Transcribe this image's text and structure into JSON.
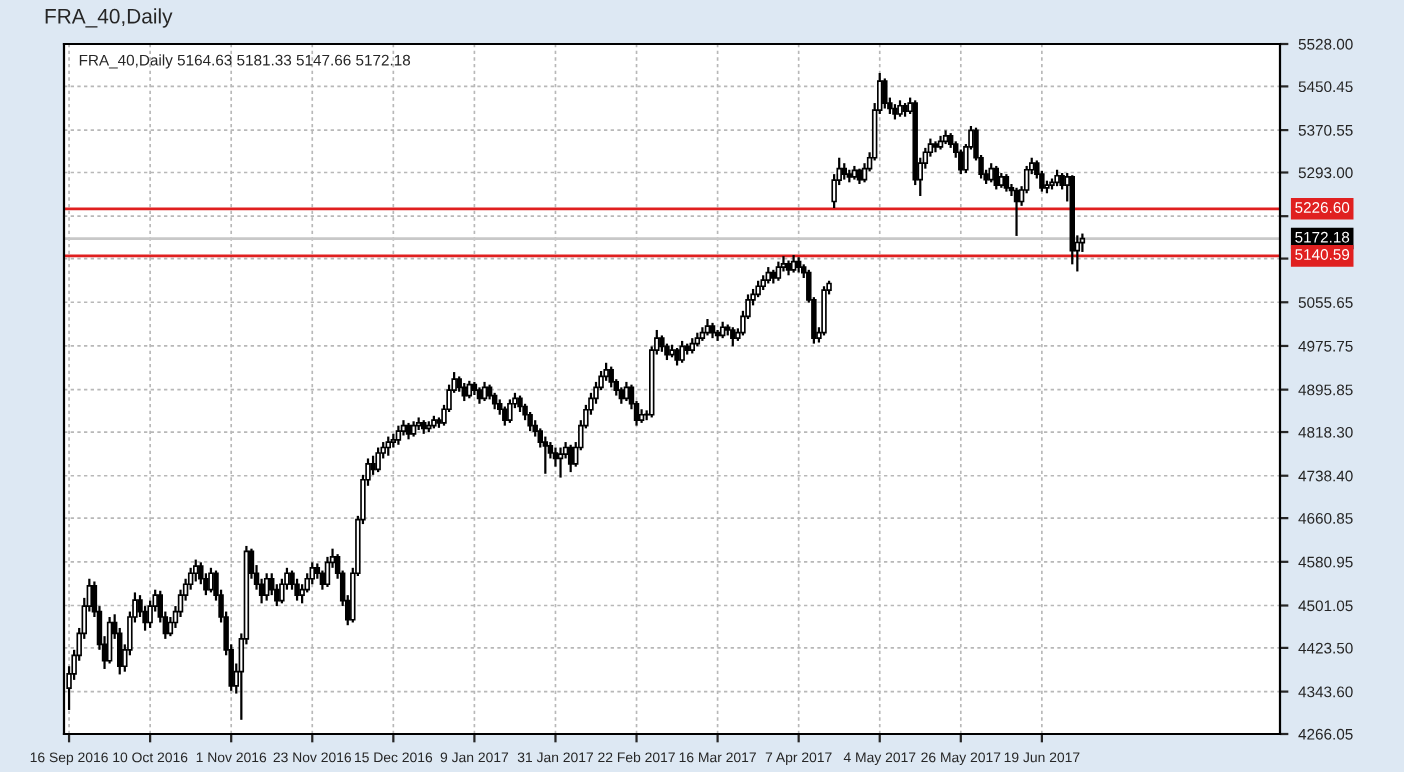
{
  "chart_data": {
    "type": "candlestick",
    "title": "FRA_40,Daily",
    "subtitle": "FRA_40,Daily 5164.63 5181.33 5147.66 5172.18",
    "categories": [
      "16 Sep 2016",
      null,
      null,
      null,
      null,
      null,
      null,
      null,
      null,
      null,
      null,
      null,
      null,
      null,
      null,
      null,
      "10 Oct 2016",
      null,
      null,
      null,
      null,
      null,
      null,
      null,
      null,
      null,
      null,
      null,
      null,
      null,
      null,
      null,
      "1 Nov 2016",
      null,
      null,
      null,
      null,
      null,
      null,
      null,
      null,
      null,
      null,
      null,
      null,
      null,
      null,
      null,
      "23 Nov 2016",
      null,
      null,
      null,
      null,
      null,
      null,
      null,
      null,
      null,
      null,
      null,
      null,
      null,
      null,
      null,
      "15 Dec 2016",
      null,
      null,
      null,
      null,
      null,
      null,
      null,
      null,
      null,
      null,
      null,
      null,
      null,
      null,
      null,
      "9 Jan 2017",
      null,
      null,
      null,
      null,
      null,
      null,
      null,
      null,
      null,
      null,
      null,
      null,
      null,
      null,
      null,
      "31 Jan 2017",
      null,
      null,
      null,
      null,
      null,
      null,
      null,
      null,
      null,
      null,
      null,
      null,
      null,
      null,
      null,
      "22 Feb 2017",
      null,
      null,
      null,
      null,
      null,
      null,
      null,
      null,
      null,
      null,
      null,
      null,
      null,
      null,
      null,
      "16 Mar 2017",
      null,
      null,
      null,
      null,
      null,
      null,
      null,
      null,
      null,
      null,
      null,
      null,
      null,
      null,
      null,
      "7 Apr 2017",
      null,
      null,
      null,
      null,
      null,
      null,
      null,
      null,
      null,
      null,
      null,
      null,
      null,
      null,
      null,
      "4 May 2017",
      null,
      null,
      null,
      null,
      null,
      null,
      null,
      null,
      null,
      null,
      null,
      null,
      null,
      null,
      null,
      "26 May 2017",
      null,
      null,
      null,
      null,
      null,
      null,
      null,
      null,
      null,
      null,
      null,
      null,
      null,
      null,
      null,
      "19 Jun 2017",
      null,
      null,
      null,
      null,
      null,
      null,
      null,
      null,
      null,
      null,
      null,
      null,
      null,
      null,
      null,
      null,
      null,
      null,
      null,
      null,
      null,
      null,
      null,
      null,
      null,
      null,
      null,
      null,
      null,
      null,
      null,
      null,
      null,
      null,
      null,
      null,
      null,
      null,
      null,
      null,
      null,
      null,
      null,
      null,
      null,
      null
    ],
    "ohlc": [
      [
        4350,
        4390,
        4310,
        4376
      ],
      [
        4376,
        4420,
        4365,
        4410
      ],
      [
        4410,
        4460,
        4400,
        4450
      ],
      [
        4450,
        4515,
        4440,
        4500
      ],
      [
        4500,
        4550,
        4490,
        4537
      ],
      [
        4537,
        4545,
        4480,
        4490
      ],
      [
        4490,
        4500,
        4420,
        4430
      ],
      [
        4430,
        4445,
        4385,
        4400
      ],
      [
        4400,
        4480,
        4395,
        4470
      ],
      [
        4470,
        4485,
        4440,
        4450
      ],
      [
        4450,
        4460,
        4375,
        4390
      ],
      [
        4390,
        4430,
        4380,
        4420
      ],
      [
        4420,
        4490,
        4410,
        4480
      ],
      [
        4480,
        4525,
        4470,
        4511
      ],
      [
        4511,
        4520,
        4480,
        4490
      ],
      [
        4490,
        4500,
        4455,
        4470
      ],
      [
        4470,
        4510,
        4460,
        4500
      ],
      [
        4500,
        4530,
        4490,
        4520
      ],
      [
        4520,
        4528,
        4470,
        4480
      ],
      [
        4480,
        4490,
        4440,
        4450
      ],
      [
        4450,
        4480,
        4445,
        4470
      ],
      [
        4470,
        4500,
        4460,
        4490
      ],
      [
        4490,
        4530,
        4480,
        4520
      ],
      [
        4520,
        4550,
        4510,
        4540
      ],
      [
        4540,
        4570,
        4530,
        4560
      ],
      [
        4560,
        4585,
        4545,
        4573
      ],
      [
        4573,
        4580,
        4540,
        4550
      ],
      [
        4550,
        4560,
        4520,
        4530
      ],
      [
        4530,
        4570,
        4525,
        4560
      ],
      [
        4560,
        4565,
        4510,
        4520
      ],
      [
        4520,
        4530,
        4470,
        4480
      ],
      [
        4480,
        4490,
        4410,
        4420
      ],
      [
        4420,
        4430,
        4345,
        4354
      ],
      [
        4354,
        4395,
        4340,
        4380
      ],
      [
        4380,
        4450,
        4292,
        4440
      ],
      [
        4440,
        4610,
        4430,
        4600
      ],
      [
        4600,
        4605,
        4550,
        4560
      ],
      [
        4560,
        4575,
        4530,
        4540
      ],
      [
        4540,
        4550,
        4505,
        4520
      ],
      [
        4520,
        4560,
        4510,
        4550
      ],
      [
        4550,
        4560,
        4520,
        4530
      ],
      [
        4530,
        4540,
        4500,
        4510
      ],
      [
        4510,
        4550,
        4505,
        4540
      ],
      [
        4540,
        4570,
        4530,
        4560
      ],
      [
        4560,
        4565,
        4530,
        4540
      ],
      [
        4540,
        4550,
        4510,
        4520
      ],
      [
        4520,
        4540,
        4505,
        4530
      ],
      [
        4530,
        4560,
        4525,
        4550
      ],
      [
        4550,
        4580,
        4540,
        4570
      ],
      [
        4570,
        4578,
        4550,
        4560
      ],
      [
        4560,
        4565,
        4530,
        4540
      ],
      [
        4540,
        4590,
        4535,
        4580
      ],
      [
        4580,
        4605,
        4570,
        4590
      ],
      [
        4590,
        4595,
        4550,
        4560
      ],
      [
        4560,
        4565,
        4500,
        4510
      ],
      [
        4510,
        4520,
        4465,
        4475
      ],
      [
        4475,
        4570,
        4470,
        4560
      ],
      [
        4560,
        4665,
        4555,
        4658
      ],
      [
        4658,
        4740,
        4650,
        4731
      ],
      [
        4731,
        4770,
        4720,
        4760
      ],
      [
        4760,
        4775,
        4740,
        4750
      ],
      [
        4750,
        4790,
        4745,
        4780
      ],
      [
        4780,
        4800,
        4770,
        4790
      ],
      [
        4790,
        4810,
        4775,
        4800
      ],
      [
        4800,
        4815,
        4790,
        4804
      ],
      [
        4804,
        4830,
        4795,
        4820
      ],
      [
        4820,
        4840,
        4812,
        4830
      ],
      [
        4830,
        4835,
        4805,
        4815
      ],
      [
        4815,
        4838,
        4810,
        4830
      ],
      [
        4830,
        4845,
        4822,
        4835
      ],
      [
        4835,
        4840,
        4815,
        4825
      ],
      [
        4825,
        4838,
        4818,
        4830
      ],
      [
        4830,
        4848,
        4825,
        4840
      ],
      [
        4840,
        4845,
        4826,
        4835
      ],
      [
        4835,
        4868,
        4830,
        4860
      ],
      [
        4860,
        4905,
        4855,
        4895
      ],
      [
        4895,
        4928,
        4890,
        4915
      ],
      [
        4915,
        4920,
        4892,
        4900
      ],
      [
        4900,
        4908,
        4875,
        4885
      ],
      [
        4885,
        4912,
        4880,
        4905
      ],
      [
        4905,
        4910,
        4886,
        4895
      ],
      [
        4895,
        4900,
        4870,
        4880
      ],
      [
        4880,
        4910,
        4875,
        4900
      ],
      [
        4900,
        4905,
        4878,
        4885
      ],
      [
        4885,
        4890,
        4860,
        4870
      ],
      [
        4870,
        4878,
        4850,
        4860
      ],
      [
        4860,
        4865,
        4830,
        4840
      ],
      [
        4840,
        4878,
        4835,
        4870
      ],
      [
        4870,
        4890,
        4862,
        4880
      ],
      [
        4880,
        4885,
        4855,
        4865
      ],
      [
        4865,
        4870,
        4840,
        4850
      ],
      [
        4850,
        4855,
        4820,
        4830
      ],
      [
        4830,
        4840,
        4810,
        4820
      ],
      [
        4820,
        4825,
        4790,
        4800
      ],
      [
        4800,
        4810,
        4742,
        4793
      ],
      [
        4793,
        4800,
        4770,
        4780
      ],
      [
        4780,
        4790,
        4755,
        4770
      ],
      [
        4770,
        4790,
        4735,
        4778
      ],
      [
        4778,
        4800,
        4770,
        4790
      ],
      [
        4790,
        4795,
        4745,
        4760
      ],
      [
        4760,
        4800,
        4755,
        4790
      ],
      [
        4790,
        4840,
        4785,
        4830
      ],
      [
        4830,
        4868,
        4825,
        4859
      ],
      [
        4859,
        4890,
        4850,
        4880
      ],
      [
        4880,
        4910,
        4870,
        4900
      ],
      [
        4900,
        4930,
        4895,
        4920
      ],
      [
        4920,
        4945,
        4912,
        4932
      ],
      [
        4932,
        4938,
        4900,
        4910
      ],
      [
        4910,
        4915,
        4885,
        4895
      ],
      [
        4895,
        4900,
        4870,
        4880
      ],
      [
        4880,
        4910,
        4875,
        4900
      ],
      [
        4900,
        4905,
        4860,
        4870
      ],
      [
        4870,
        4875,
        4830,
        4840
      ],
      [
        4840,
        4860,
        4835,
        4850
      ],
      [
        4850,
        4858,
        4840,
        4850
      ],
      [
        4850,
        4975,
        4845,
        4968
      ],
      [
        4968,
        5005,
        4960,
        4990
      ],
      [
        4990,
        4995,
        4965,
        4975
      ],
      [
        4975,
        4980,
        4950,
        4960
      ],
      [
        4960,
        4978,
        4955,
        4968
      ],
      [
        4968,
        4972,
        4940,
        4950
      ],
      [
        4950,
        4985,
        4945,
        4975
      ],
      [
        4975,
        4980,
        4960,
        4968
      ],
      [
        4968,
        4990,
        4962,
        4980
      ],
      [
        4980,
        5000,
        4975,
        4990
      ],
      [
        4990,
        5010,
        4985,
        5000
      ],
      [
        5000,
        5025,
        4995,
        5012
      ],
      [
        5012,
        5018,
        4990,
        5000
      ],
      [
        5000,
        5005,
        4985,
        4995
      ],
      [
        4995,
        5020,
        4990,
        5010
      ],
      [
        5010,
        5015,
        4995,
        5005
      ],
      [
        5005,
        5010,
        4975,
        4990
      ],
      [
        4990,
        5008,
        4985,
        5000
      ],
      [
        5000,
        5040,
        4995,
        5030
      ],
      [
        5030,
        5070,
        5025,
        5060
      ],
      [
        5060,
        5080,
        5050,
        5070
      ],
      [
        5070,
        5095,
        5065,
        5085
      ],
      [
        5085,
        5105,
        5078,
        5096
      ],
      [
        5096,
        5120,
        5090,
        5110
      ],
      [
        5110,
        5115,
        5090,
        5100
      ],
      [
        5100,
        5130,
        5095,
        5120
      ],
      [
        5120,
        5140,
        5112,
        5126
      ],
      [
        5126,
        5132,
        5105,
        5115
      ],
      [
        5115,
        5142,
        5110,
        5130
      ],
      [
        5130,
        5138,
        5110,
        5120
      ],
      [
        5120,
        5125,
        5100,
        5110
      ],
      [
        5110,
        5115,
        5055,
        5060
      ],
      [
        5060,
        5065,
        4980,
        4990
      ],
      [
        4990,
        5010,
        4982,
        5000
      ],
      [
        5000,
        5085,
        4995,
        5078
      ],
      [
        5078,
        5095,
        5070,
        5090
      ],
      [
        5240,
        5290,
        5228,
        5279
      ],
      [
        5279,
        5320,
        5270,
        5300
      ],
      [
        5300,
        5310,
        5280,
        5290
      ],
      [
        5290,
        5298,
        5275,
        5285
      ],
      [
        5285,
        5305,
        5280,
        5297
      ],
      [
        5297,
        5300,
        5272,
        5280
      ],
      [
        5280,
        5310,
        5275,
        5300
      ],
      [
        5300,
        5330,
        5295,
        5320
      ],
      [
        5320,
        5420,
        5315,
        5407
      ],
      [
        5407,
        5475,
        5400,
        5460
      ],
      [
        5460,
        5465,
        5410,
        5420
      ],
      [
        5420,
        5430,
        5400,
        5410
      ],
      [
        5410,
        5418,
        5390,
        5400
      ],
      [
        5400,
        5425,
        5395,
        5415
      ],
      [
        5415,
        5420,
        5395,
        5405
      ],
      [
        5405,
        5430,
        5400,
        5420
      ],
      [
        5420,
        5425,
        5270,
        5280
      ],
      [
        5280,
        5320,
        5250,
        5310
      ],
      [
        5310,
        5338,
        5300,
        5330
      ],
      [
        5330,
        5355,
        5322,
        5345
      ],
      [
        5345,
        5350,
        5330,
        5340
      ],
      [
        5340,
        5360,
        5335,
        5350
      ],
      [
        5350,
        5370,
        5345,
        5360
      ],
      [
        5360,
        5365,
        5338,
        5345
      ],
      [
        5345,
        5350,
        5320,
        5330
      ],
      [
        5330,
        5335,
        5290,
        5298
      ],
      [
        5298,
        5345,
        5292,
        5340
      ],
      [
        5340,
        5378,
        5335,
        5370
      ],
      [
        5370,
        5375,
        5315,
        5320
      ],
      [
        5320,
        5325,
        5282,
        5290
      ],
      [
        5290,
        5298,
        5272,
        5280
      ],
      [
        5280,
        5310,
        5275,
        5300
      ],
      [
        5300,
        5305,
        5262,
        5270
      ],
      [
        5270,
        5292,
        5265,
        5285
      ],
      [
        5285,
        5290,
        5258,
        5265
      ],
      [
        5265,
        5272,
        5250,
        5260
      ],
      [
        5260,
        5265,
        5177,
        5240
      ],
      [
        5240,
        5268,
        5232,
        5261
      ],
      [
        5261,
        5305,
        5255,
        5298
      ],
      [
        5298,
        5320,
        5290,
        5310
      ],
      [
        5310,
        5315,
        5282,
        5290
      ],
      [
        5290,
        5296,
        5258,
        5265
      ],
      [
        5265,
        5278,
        5255,
        5270
      ],
      [
        5270,
        5282,
        5262,
        5275
      ],
      [
        5275,
        5298,
        5268,
        5287
      ],
      [
        5287,
        5292,
        5262,
        5270
      ],
      [
        5270,
        5292,
        5240,
        5285
      ],
      [
        5285,
        5288,
        5125,
        5150
      ],
      [
        5150,
        5178,
        5112,
        5165
      ],
      [
        5164.63,
        5181.33,
        5147.66,
        5172.18
      ],
      null,
      null,
      null,
      null,
      null,
      null,
      null,
      null,
      null,
      null,
      null,
      null,
      null,
      null,
      null,
      null,
      null,
      null,
      null,
      null,
      null,
      null,
      null,
      null,
      null,
      null,
      null,
      null,
      null,
      null,
      null,
      null,
      null,
      null,
      null,
      null,
      null,
      null
    ],
    "ylim": [
      4266.05,
      5528.0
    ],
    "yticks": [
      "4266.05",
      "4343.60",
      "4423.50",
      "4501.05",
      "4580.95",
      "4660.85",
      "4738.40",
      "4818.30",
      "4895.85",
      "4975.75",
      "5055.65",
      {
        "value": 5135.55,
        "label": null
      },
      {
        "value": 5213.1,
        "label": null
      },
      "5293.00",
      "5370.55",
      "5450.45",
      "5528.00"
    ],
    "ref_lines": [
      {
        "axis": "y",
        "value": 5226.6,
        "label": "5226.60",
        "color": "#e02020"
      },
      {
        "axis": "y",
        "value": 5172.18,
        "label": "5172.18",
        "color": "#c8c8c8"
      },
      {
        "axis": "y",
        "value": 5140.59,
        "label": "5140.59",
        "color": "#e02020"
      }
    ],
    "grid": true
  }
}
